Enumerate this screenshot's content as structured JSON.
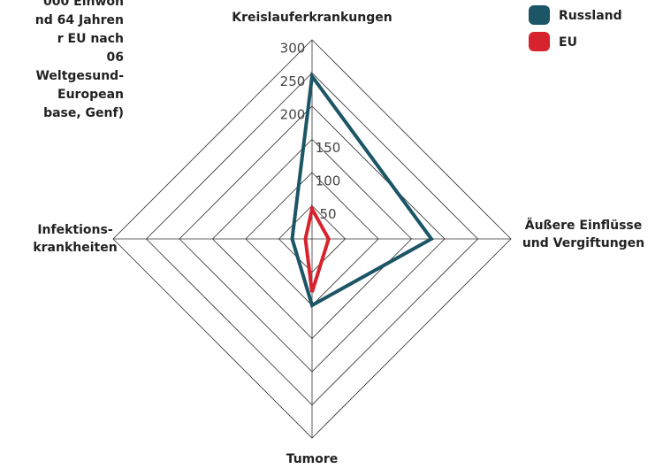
{
  "chart_data": {
    "type": "radar",
    "note_lines": [
      "000 Einwoh",
      "nd 64 Jahren",
      "r EU nach",
      "06",
      "Weltgesund-",
      "European",
      "base, Genf)"
    ],
    "categories": [
      "Kreislauferkrankungen",
      [
        "Äußere Einflüsse",
        "und Vergiftungen"
      ],
      "Tumore",
      [
        "Infektions-",
        "krankheiten"
      ]
    ],
    "series": [
      {
        "name": "Russland",
        "color": "#1b5566",
        "values": [
          245,
          180,
          100,
          30
        ]
      },
      {
        "name": "EU",
        "color": "#d7232e",
        "values": [
          45,
          25,
          80,
          10
        ]
      }
    ],
    "ylim": [
      0,
      300
    ],
    "yticks": [
      50,
      100,
      150,
      200,
      250,
      300
    ],
    "grid": true,
    "legend": "upper right"
  }
}
